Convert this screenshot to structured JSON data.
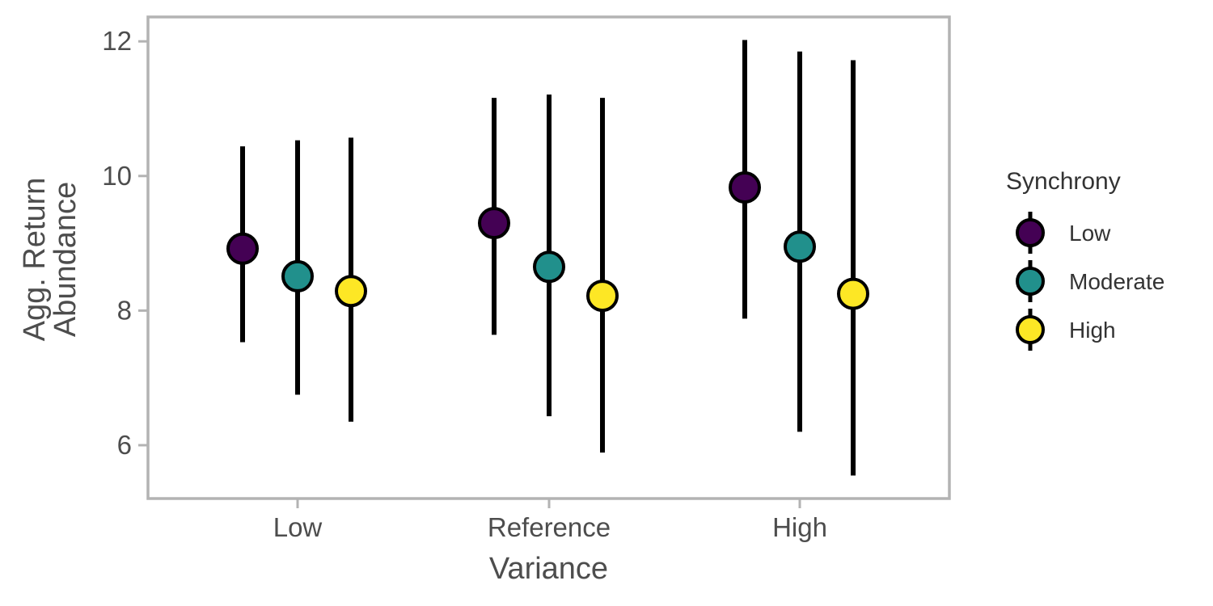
{
  "chart_data": {
    "type": "scatter",
    "title": "",
    "xlabel": "Variance",
    "ylabel_lines": [
      "Agg. Return",
      "Abundance"
    ],
    "categories": [
      "Low",
      "Reference",
      "High"
    ],
    "ylim": [
      5.2,
      12.35
    ],
    "yticks": [
      6,
      8,
      10,
      12
    ],
    "grid": false,
    "legend": {
      "title": "Synchrony",
      "placement": "right"
    },
    "series": [
      {
        "name": "Low",
        "color": "#440154",
        "points": [
          {
            "category": "Low",
            "y": 8.92,
            "lower": 7.53,
            "upper": 10.44
          },
          {
            "category": "Reference",
            "y": 9.3,
            "lower": 7.64,
            "upper": 11.16
          },
          {
            "category": "High",
            "y": 9.83,
            "lower": 7.88,
            "upper": 12.02
          }
        ]
      },
      {
        "name": "Moderate",
        "color": "#21908C",
        "points": [
          {
            "category": "Low",
            "y": 8.51,
            "lower": 6.75,
            "upper": 10.53
          },
          {
            "category": "Reference",
            "y": 8.65,
            "lower": 6.43,
            "upper": 11.21
          },
          {
            "category": "High",
            "y": 8.95,
            "lower": 6.2,
            "upper": 11.85
          }
        ]
      },
      {
        "name": "High",
        "color": "#FDE725",
        "points": [
          {
            "category": "Low",
            "y": 8.29,
            "lower": 6.35,
            "upper": 10.57
          },
          {
            "category": "Reference",
            "y": 8.22,
            "lower": 5.89,
            "upper": 11.16
          },
          {
            "category": "High",
            "y": 8.25,
            "lower": 5.55,
            "upper": 11.72
          }
        ]
      }
    ]
  }
}
